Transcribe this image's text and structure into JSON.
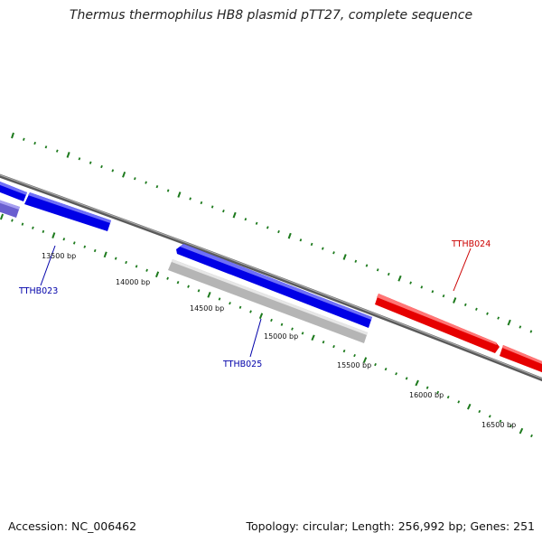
{
  "title": "Thermus thermophilus HB8 plasmid pTT27, complete sequence",
  "footer": {
    "accession": "Accession: NC_006462",
    "summary": "Topology: circular; Length: 256,992 bp; Genes: 251"
  },
  "ticks": [
    {
      "label": "13500 bp"
    },
    {
      "label": "14000 bp"
    },
    {
      "label": "14500 bp"
    },
    {
      "label": "15000 bp"
    },
    {
      "label": "15500 bp"
    },
    {
      "label": "16000 bp"
    },
    {
      "label": "16500 bp"
    }
  ],
  "genes": [
    {
      "label": "TTHB023",
      "color": "#0000aa"
    },
    {
      "label": "TTHB024",
      "color": "#cc0000"
    },
    {
      "label": "TTHB025",
      "color": "#0000aa"
    }
  ],
  "colors": {
    "forward_gene": "#0000ee",
    "reverse_gene": "#b8b8b8",
    "highlight_gene": "#ee0000",
    "partial_gene": "#6a5fd0",
    "backbone": "#777777",
    "tick": "#1d7a1d"
  }
}
